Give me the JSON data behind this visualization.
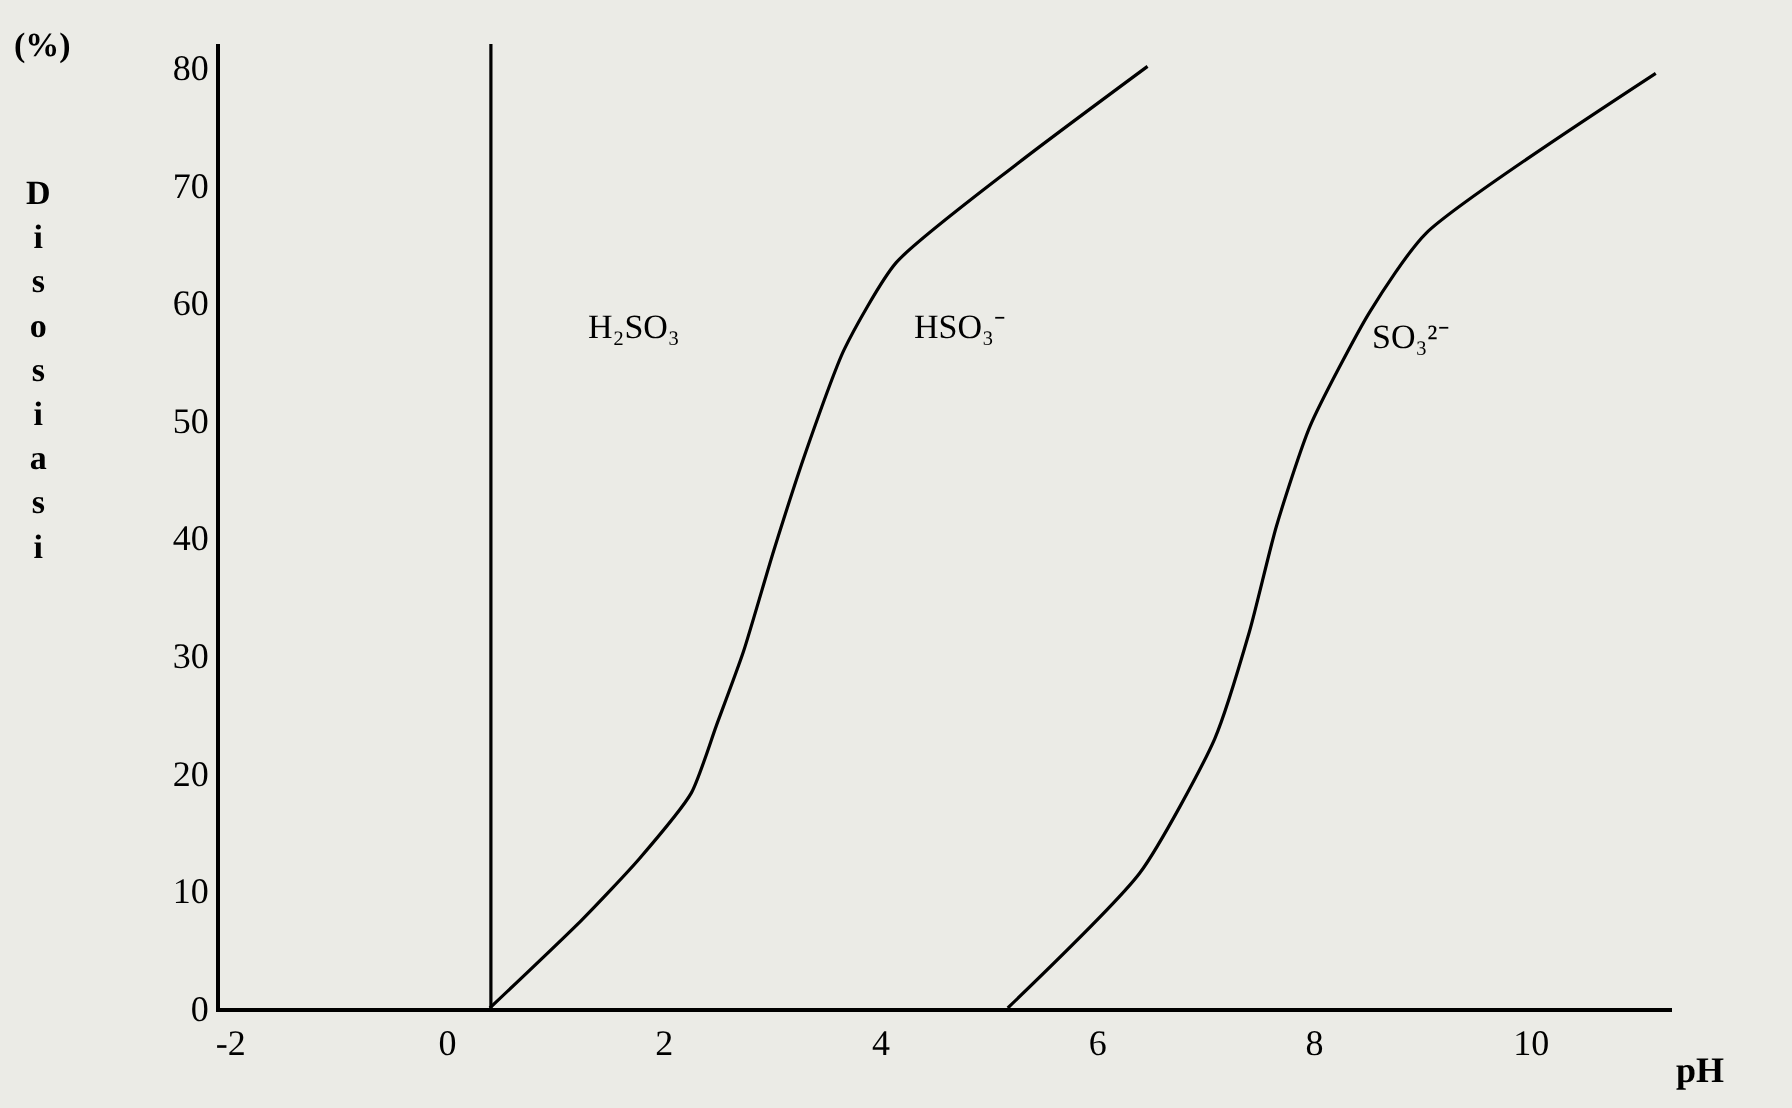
{
  "chart_data": {
    "type": "line",
    "xlabel": "pH",
    "ylabel": "Disosiasi",
    "xlim": [
      -2.1,
      11.3
    ],
    "ylim": [
      0,
      82
    ],
    "xticks": [
      -2,
      0,
      2,
      4,
      6,
      8,
      10
    ],
    "yticks": [
      0,
      10,
      20,
      30,
      40,
      50,
      60,
      70,
      80
    ],
    "grid": false,
    "marker": "none",
    "line_style": "solid",
    "series": [
      {
        "color": "#000000",
        "x": [
          0.39,
          1.24,
          1.77,
          2.25,
          2.48,
          2.73,
          3.01,
          3.31,
          3.66,
          4.14,
          5.27,
          6.46
        ],
        "values": [
          0,
          7.5,
          12.7,
          18.3,
          24,
          30.3,
          38.9,
          47.4,
          56,
          63.4,
          71.9,
          80.1
        ]
      },
      {
        "color": "#000000",
        "x": [
          5.17,
          6.39,
          7.08,
          7.4,
          7.65,
          7.96,
          8.51,
          9.03,
          11.15
        ],
        "values": [
          0,
          11.5,
          22.9,
          32,
          41,
          49.5,
          59.2,
          65.9,
          79.5
        ]
      }
    ],
    "ref_lines": [
      {
        "axis": "x",
        "value": 0.4,
        "color": "#000000"
      }
    ],
    "annotations": [
      "(%)",
      "H₂SO₃",
      "HSO₃⁻",
      "SO₃²⁻"
    ]
  }
}
